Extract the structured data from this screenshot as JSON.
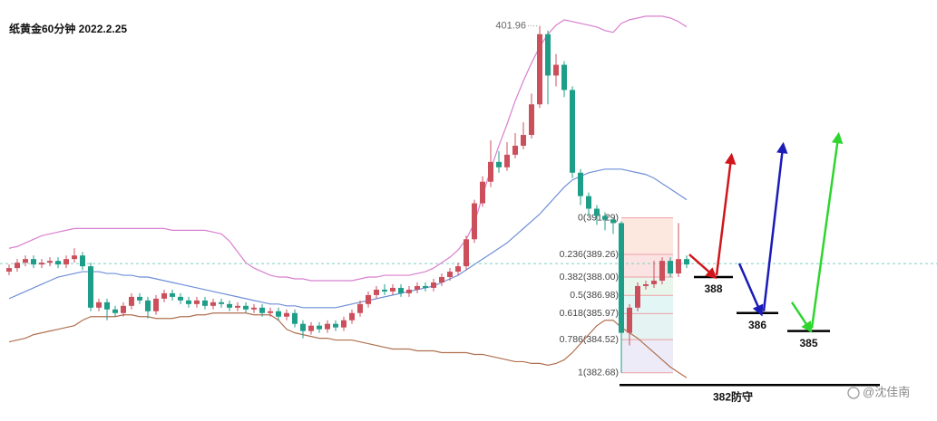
{
  "chart_data": {
    "type": "candlestick",
    "title": "纸黄金60分钟 2022.2.25",
    "ylim": [
      380,
      403.4
    ],
    "up_color": "#cc4f5c",
    "down_color": "#1e9e88",
    "open": [
      388.3,
      388.5,
      388.8,
      389.0,
      388.7,
      388.8,
      388.9,
      388.7,
      389.0,
      389.2,
      388.6,
      386.3,
      386.6,
      386.2,
      386.0,
      386.4,
      386.9,
      386.7,
      386.1,
      386.8,
      387.1,
      386.9,
      386.7,
      386.5,
      386.7,
      386.4,
      386.6,
      386.5,
      386.3,
      386.4,
      386.2,
      386.3,
      386.0,
      386.1,
      385.8,
      386.0,
      385.4,
      385.0,
      385.3,
      385.1,
      385.4,
      385.2,
      385.6,
      386.0,
      386.5,
      387.0,
      387.3,
      387.2,
      387.4,
      387.1,
      387.3,
      387.5,
      387.4,
      387.7,
      388.0,
      388.3,
      388.6,
      390.1,
      392.1,
      393.3,
      394.4,
      394.1,
      394.8,
      395.3,
      395.9,
      397.6,
      401.5,
      399.2,
      399.8,
      398.4,
      393.8,
      392.5,
      391.8,
      391.4,
      391.2,
      391.0,
      384.9,
      386.3,
      387.5,
      387.6,
      387.8,
      388.9,
      388.2,
      389.0
    ],
    "high": [
      388.7,
      389.0,
      389.2,
      389.2,
      389.0,
      389.1,
      389.1,
      389.2,
      389.6,
      389.4,
      388.8,
      386.8,
      386.8,
      386.4,
      386.6,
      387.1,
      387.1,
      386.9,
      387.0,
      387.3,
      387.3,
      387.1,
      386.9,
      386.9,
      386.9,
      386.8,
      386.8,
      386.7,
      386.6,
      386.6,
      386.5,
      386.5,
      386.3,
      386.3,
      386.2,
      386.2,
      385.6,
      385.5,
      385.5,
      385.6,
      385.6,
      385.8,
      386.2,
      386.7,
      387.2,
      387.5,
      387.6,
      387.6,
      387.6,
      387.5,
      387.7,
      387.7,
      387.9,
      388.2,
      388.5,
      388.8,
      390.3,
      392.3,
      393.6,
      395.6,
      395.0,
      395.5,
      396.0,
      396.6,
      398.2,
      401.96,
      401.7,
      400.4,
      400.0,
      398.6,
      394.0,
      392.7,
      392.0,
      391.6,
      391.29,
      391.1,
      386.5,
      387.7,
      387.8,
      388.9,
      389.1,
      389.1,
      391.0,
      389.2
    ],
    "low": [
      388.1,
      388.3,
      388.6,
      388.5,
      388.5,
      388.6,
      388.5,
      388.5,
      388.8,
      388.4,
      386.1,
      386.1,
      385.6,
      385.8,
      385.8,
      386.2,
      386.5,
      385.7,
      385.9,
      386.6,
      386.7,
      386.5,
      386.3,
      386.3,
      386.2,
      386.2,
      386.3,
      386.1,
      386.1,
      386.0,
      386.0,
      385.8,
      385.8,
      385.6,
      385.6,
      385.2,
      384.6,
      384.8,
      384.9,
      384.9,
      385.0,
      385.0,
      385.4,
      385.8,
      386.3,
      386.8,
      387.0,
      387.0,
      386.9,
      386.9,
      387.1,
      387.2,
      387.2,
      387.5,
      387.8,
      388.1,
      388.4,
      389.9,
      391.9,
      393.0,
      393.8,
      393.9,
      394.6,
      395.1,
      395.7,
      397.4,
      397.6,
      398.6,
      398.0,
      393.5,
      392.0,
      391.4,
      390.9,
      390.6,
      390.4,
      382.68,
      384.2,
      386.1,
      387.3,
      387.4,
      387.6,
      388.0,
      388.0,
      388.5
    ],
    "close": [
      388.5,
      388.8,
      389.0,
      388.7,
      388.8,
      388.9,
      388.7,
      389.0,
      389.2,
      388.6,
      386.3,
      386.6,
      386.2,
      386.0,
      386.4,
      386.9,
      386.7,
      386.1,
      386.8,
      387.1,
      386.9,
      386.7,
      386.5,
      386.7,
      386.4,
      386.6,
      386.5,
      386.3,
      386.4,
      386.2,
      386.3,
      386.0,
      386.1,
      385.8,
      386.0,
      385.4,
      385.0,
      385.3,
      385.1,
      385.4,
      385.2,
      385.6,
      386.0,
      386.5,
      387.0,
      387.3,
      387.2,
      387.4,
      387.1,
      387.3,
      387.5,
      387.4,
      387.7,
      388.0,
      388.3,
      388.6,
      390.1,
      392.1,
      393.3,
      394.4,
      394.1,
      394.8,
      395.3,
      395.9,
      397.6,
      401.5,
      399.2,
      399.8,
      398.4,
      393.8,
      392.5,
      391.8,
      391.4,
      391.2,
      391.0,
      384.9,
      386.3,
      387.5,
      387.6,
      387.8,
      388.9,
      388.2,
      389.0,
      388.7
    ],
    "bands": [
      {
        "color": "#d97fcf",
        "values": [
          389.6,
          389.7,
          389.9,
          390.1,
          390.3,
          390.4,
          390.5,
          390.6,
          390.7,
          390.7,
          390.7,
          390.7,
          390.7,
          390.7,
          390.7,
          390.7,
          390.7,
          390.7,
          390.7,
          390.7,
          390.6,
          390.6,
          390.6,
          390.6,
          390.6,
          390.5,
          390.4,
          390.0,
          389.4,
          388.8,
          388.5,
          388.3,
          388.1,
          388.0,
          388.0,
          387.9,
          387.9,
          387.8,
          387.8,
          387.8,
          387.8,
          387.8,
          387.8,
          387.9,
          388.0,
          388.0,
          388.1,
          388.1,
          388.1,
          388.1,
          388.2,
          388.3,
          388.5,
          388.8,
          389.1,
          389.5,
          390.1,
          391.0,
          392.5,
          394.0,
          395.3,
          396.5,
          397.8,
          398.9,
          399.9,
          400.8,
          401.5,
          402.0,
          402.3,
          402.2,
          402.1,
          402.0,
          401.9,
          401.7,
          401.6,
          402.1,
          402.3,
          402.4,
          402.5,
          402.5,
          402.5,
          402.4,
          402.2,
          401.9
        ]
      },
      {
        "color": "#6f8fd8",
        "values": [
          386.8,
          387.0,
          387.2,
          387.4,
          387.6,
          387.8,
          388.0,
          388.1,
          388.2,
          388.3,
          388.3,
          388.3,
          388.2,
          388.2,
          388.1,
          388.1,
          388.0,
          388.0,
          387.9,
          387.8,
          387.7,
          387.6,
          387.5,
          387.4,
          387.3,
          387.2,
          387.1,
          387.0,
          386.9,
          386.8,
          386.7,
          386.6,
          386.5,
          386.5,
          386.4,
          386.4,
          386.3,
          386.3,
          386.3,
          386.3,
          386.3,
          386.4,
          386.5,
          386.6,
          386.7,
          386.8,
          386.9,
          387.0,
          387.1,
          387.2,
          387.3,
          387.4,
          387.5,
          387.7,
          387.9,
          388.1,
          388.4,
          388.7,
          389.0,
          389.3,
          389.6,
          389.9,
          390.3,
          390.7,
          391.1,
          391.5,
          392.0,
          392.5,
          393.0,
          393.4,
          393.6,
          393.8,
          393.9,
          394.0,
          394.0,
          394.0,
          393.9,
          393.8,
          393.7,
          393.5,
          393.2,
          392.9,
          392.6,
          392.3
        ]
      },
      {
        "color": "#b07050",
        "values": [
          384.4,
          384.5,
          384.6,
          384.8,
          384.9,
          385.0,
          385.1,
          385.2,
          385.3,
          385.6,
          385.8,
          385.8,
          385.8,
          385.8,
          385.9,
          385.9,
          385.8,
          385.8,
          385.7,
          385.7,
          385.7,
          385.8,
          385.8,
          385.9,
          385.9,
          386.0,
          386.0,
          386.0,
          386.0,
          386.0,
          385.9,
          385.9,
          385.9,
          385.6,
          385.1,
          384.9,
          384.8,
          384.7,
          384.6,
          384.6,
          384.5,
          384.5,
          384.5,
          384.4,
          384.3,
          384.2,
          384.1,
          384.0,
          384.0,
          384.0,
          383.9,
          383.9,
          383.9,
          383.8,
          383.8,
          383.8,
          383.8,
          383.7,
          383.7,
          383.6,
          383.5,
          383.4,
          383.3,
          383.3,
          383.2,
          383.2,
          383.1,
          383.2,
          383.4,
          383.8,
          384.3,
          384.8,
          385.3,
          385.6,
          385.6,
          385.2,
          384.9,
          384.6,
          384.2,
          383.8,
          383.4,
          383.0,
          382.7,
          382.4
        ]
      }
    ],
    "reference_line": {
      "value": 388.75,
      "color": "#7ccfc3"
    },
    "peak_label": 401.96,
    "fibonacci": {
      "levels": [
        {
          "value": 391.29,
          "label": "0(391.29)"
        },
        {
          "value": 389.26,
          "label": "0.236(389.26)"
        },
        {
          "value": 388.0,
          "label": "0.382(388.00)"
        },
        {
          "value": 386.98,
          "label": "0.5(386.98)"
        },
        {
          "value": 385.97,
          "label": "0.618(385.97)"
        },
        {
          "value": 384.52,
          "label": "0.786(384.52)"
        },
        {
          "value": 382.68,
          "label": "1(382.68)"
        }
      ],
      "zone_colors": [
        "#fde8e0",
        "#fbe3e3",
        "#e8f6ec",
        "#e2f6f6",
        "#e6f3f3",
        "#ecebf7"
      ],
      "line_color": "#eea0a6"
    },
    "targets": [
      388,
      386,
      385,
      {
        "value": 382,
        "label": "382防守"
      }
    ]
  },
  "watermark": "@沈佳南"
}
